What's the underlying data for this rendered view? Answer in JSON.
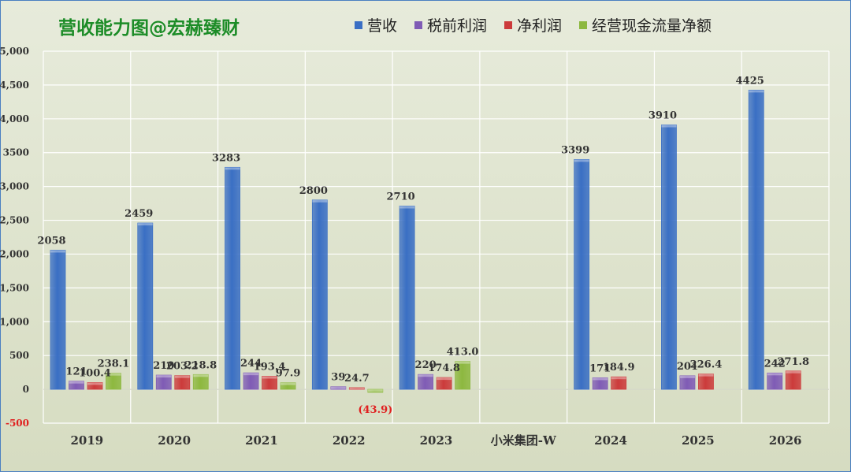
{
  "title": "营收能力图@宏赫臻财",
  "chart_data": {
    "type": "bar",
    "categories": [
      "2019",
      "2020",
      "2021",
      "2022",
      "2023",
      "小米集团-W",
      "2024",
      "2025",
      "2026"
    ],
    "series": [
      {
        "name": "营收",
        "color": "#3a6fc4",
        "values": [
          2058,
          2459,
          3283,
          2800,
          2710,
          null,
          3399,
          3910,
          4425
        ],
        "labels": [
          "2058",
          "2459",
          "3283",
          "2800",
          "2710",
          "",
          "3399",
          "3910",
          "4425"
        ]
      },
      {
        "name": "税前利润",
        "color": "#7f5bb5",
        "values": [
          121,
          210,
          244,
          39,
          220,
          null,
          171,
          201,
          242
        ],
        "labels": [
          "121",
          "210",
          "244",
          "39",
          "220",
          "",
          "171",
          "201",
          "242"
        ]
      },
      {
        "name": "净利润",
        "color": "#cc3b3b",
        "values": [
          100.4,
          203.2,
          193.4,
          24.7,
          174.8,
          null,
          184.9,
          226.4,
          271.8
        ],
        "labels": [
          "100.4",
          "203.2",
          "193.4",
          "24.7",
          "174.8",
          "",
          "184.9",
          "226.4",
          "271.8"
        ]
      },
      {
        "name": "经营现金流量净额",
        "color": "#8db83f",
        "values": [
          238.1,
          218.8,
          97.9,
          -43.9,
          413.0,
          null,
          null,
          null,
          null
        ],
        "labels": [
          "238.1",
          "218.8",
          "97.9",
          "(43.9)",
          "413.0",
          "",
          "",
          "",
          ""
        ]
      }
    ],
    "ylim": [
      -500,
      5000
    ],
    "yticks": [
      -500,
      0,
      500,
      1000,
      1500,
      2000,
      2500,
      3000,
      3500,
      4000,
      4500,
      5000
    ],
    "ytick_labels": [
      "-500",
      "0",
      "500",
      "1,000",
      "1,500",
      "2,000",
      "2,500",
      "3,000",
      "3500",
      "4,000",
      "4,500",
      "5,000"
    ],
    "grid": true,
    "legend_position": "top"
  }
}
